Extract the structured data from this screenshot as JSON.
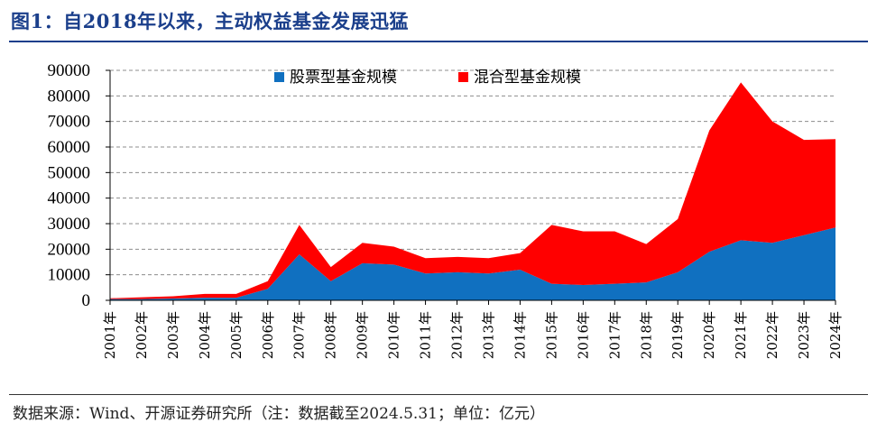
{
  "figure": {
    "title": "图1：自2018年以来，主动权益基金发展迅猛",
    "source": "数据来源：Wind、开源证券研究所（注：数据截至2024.5.31；单位：亿元）"
  },
  "colors": {
    "stock": "#1070c0",
    "mixed": "#ff0000",
    "title": "#1b3f8b"
  },
  "chart_data": {
    "type": "area",
    "stacked": true,
    "title": "",
    "xlabel": "",
    "ylabel": "",
    "categories": [
      "2001年",
      "2002年",
      "2003年",
      "2004年",
      "2005年",
      "2006年",
      "2007年",
      "2008年",
      "2009年",
      "2010年",
      "2011年",
      "2012年",
      "2013年",
      "2014年",
      "2015年",
      "2016年",
      "2017年",
      "2018年",
      "2019年",
      "2020年",
      "2021年",
      "2022年",
      "2023年",
      "2024年"
    ],
    "ylim": [
      0,
      90000
    ],
    "yticks": [
      "0",
      "10000",
      "20000",
      "30000",
      "40000",
      "50000",
      "60000",
      "70000",
      "80000",
      "90000"
    ],
    "grid": true,
    "legend_position": "top",
    "series": [
      {
        "name": "股票型基金规模",
        "color": "#1070c0",
        "values": [
          500,
          500,
          700,
          1000,
          1000,
          4500,
          18000,
          7500,
          14500,
          14000,
          10500,
          11000,
          10500,
          12000,
          6500,
          6000,
          6500,
          7000,
          11000,
          19000,
          23500,
          22500,
          25500,
          28500
        ]
      },
      {
        "name": "混合型基金规模",
        "color": "#ff0000",
        "values": [
          300,
          700,
          900,
          1500,
          1500,
          3000,
          11500,
          5500,
          8000,
          7000,
          6000,
          6000,
          6000,
          6500,
          23000,
          21000,
          20500,
          15000,
          20800,
          47500,
          61800,
          47500,
          37300,
          34600
        ]
      }
    ]
  }
}
